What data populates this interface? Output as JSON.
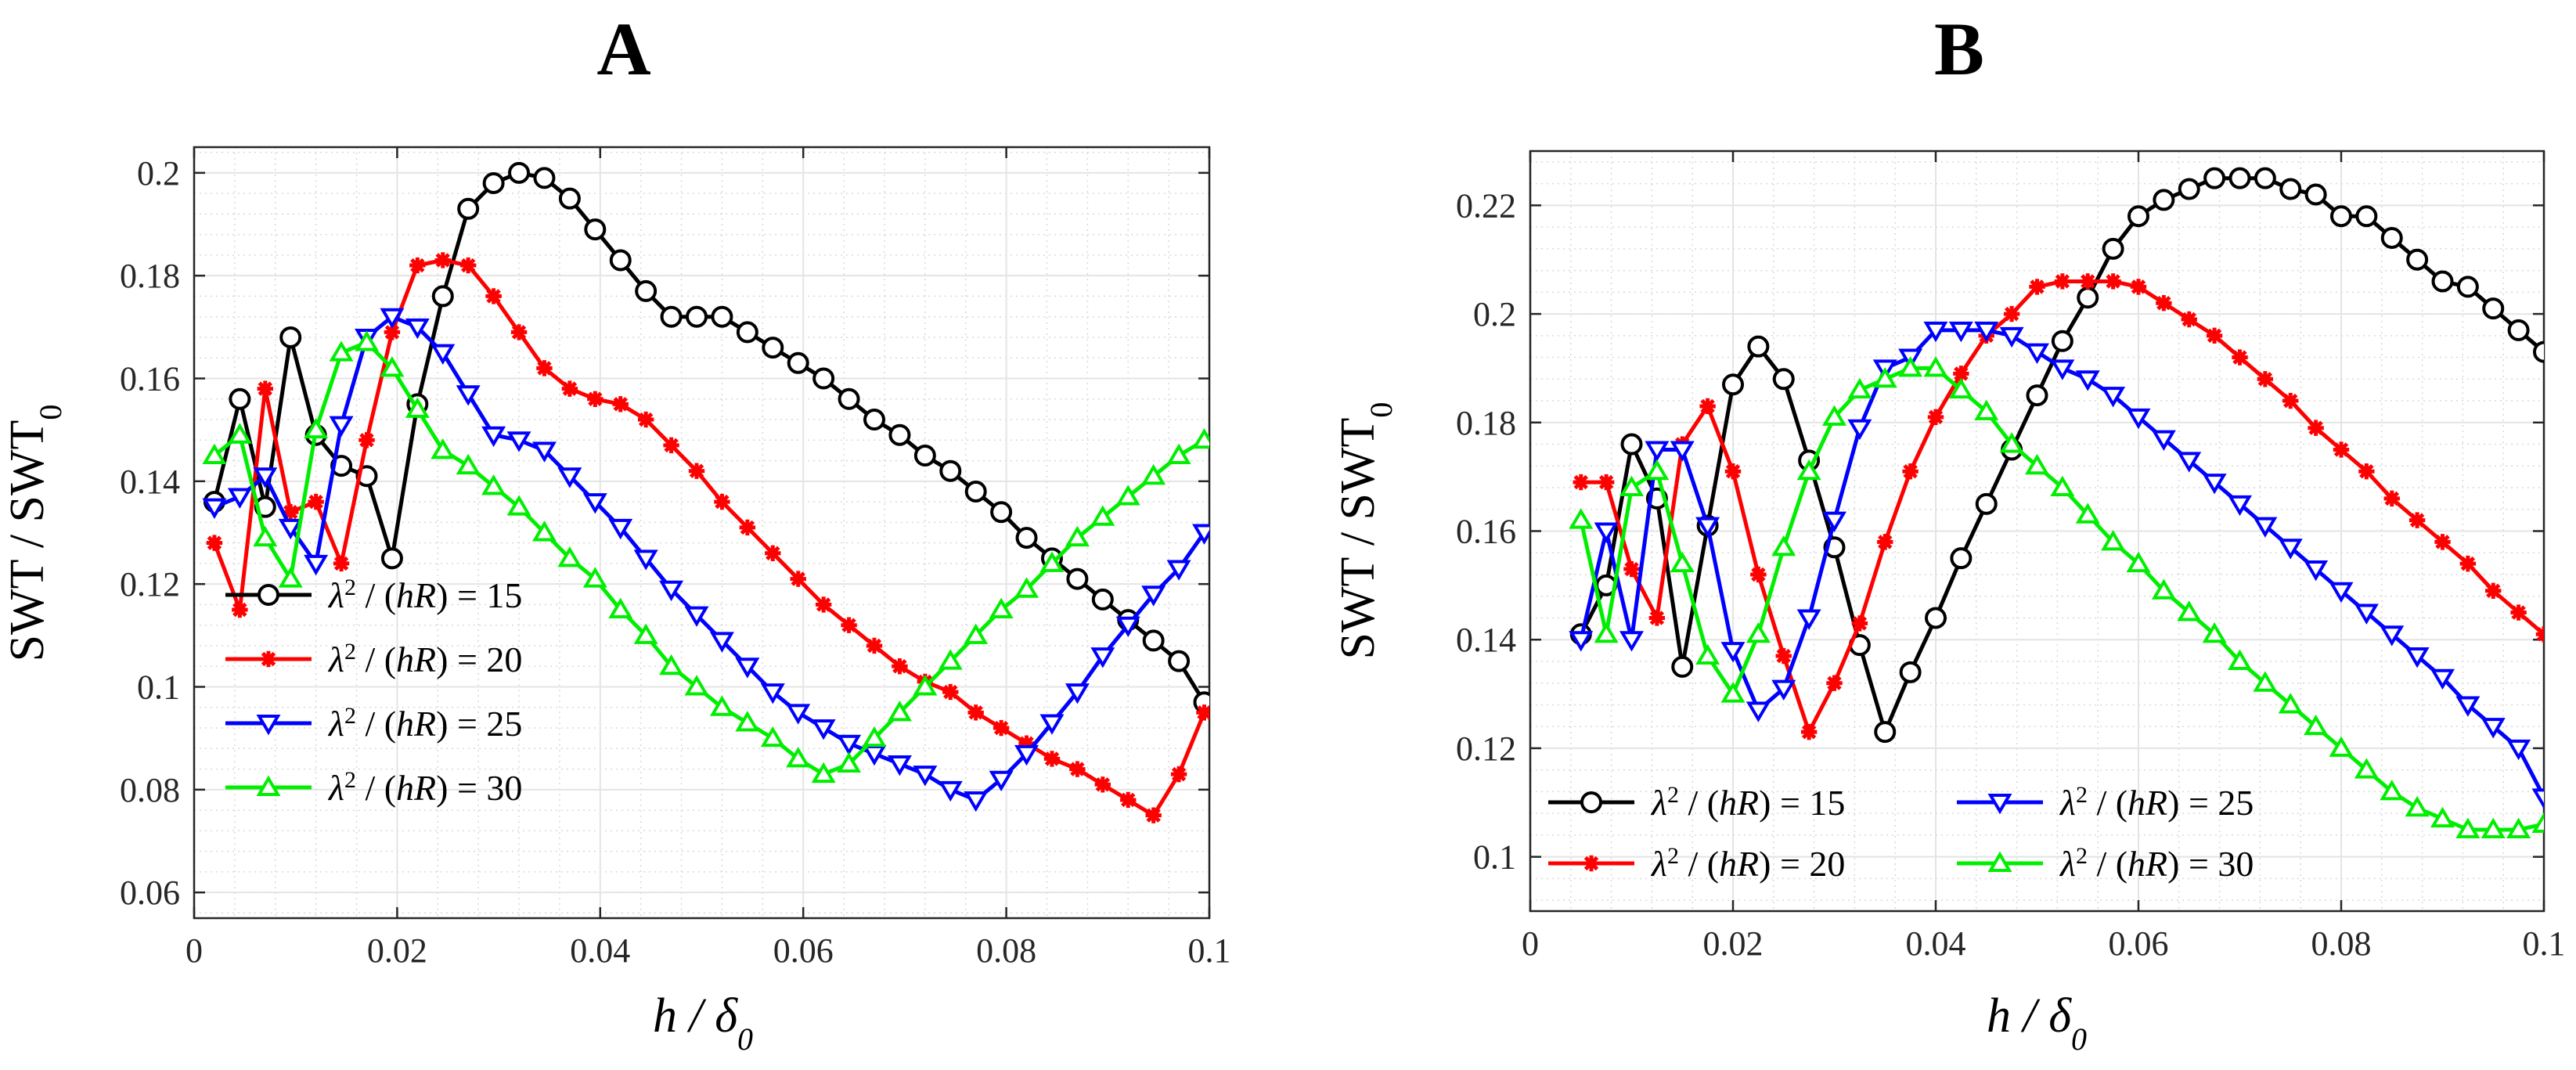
{
  "figure": {
    "panels": [
      "A",
      "B"
    ]
  },
  "chart_data": [
    {
      "panel": "A",
      "type": "line",
      "title": "A",
      "xlabel": "h / δ0",
      "ylabel": "SWT / SWT0",
      "xlim": [
        0,
        0.1
      ],
      "ylim": [
        0.055,
        0.205
      ],
      "xticks": [
        0,
        0.02,
        0.04,
        0.06,
        0.08,
        0.1
      ],
      "xtick_labels": [
        "0",
        "0.02",
        "0.04",
        "0.06",
        "0.08",
        "0.1"
      ],
      "yticks": [
        0.06,
        0.08,
        0.1,
        0.12,
        0.14,
        0.16,
        0.18,
        0.2
      ],
      "ytick_labels": [
        "0.06",
        "0.08",
        "0.1",
        "0.12",
        "0.14",
        "0.16",
        "0.18",
        "0.2"
      ],
      "grid": true,
      "legend_position": "bottom-left",
      "legend_columns": 1,
      "series": [
        {
          "name": "λ2 / (hR) = 15",
          "value": "15",
          "color": "#000000",
          "marker": "circle",
          "x": [
            0.002,
            0.0045,
            0.007,
            0.0095,
            0.012,
            0.0145,
            0.017,
            0.0195,
            0.022,
            0.0245,
            0.027,
            0.0295,
            0.032,
            0.0345,
            0.037,
            0.0395,
            0.042,
            0.0445,
            0.047,
            0.0495,
            0.052,
            0.0545,
            0.057,
            0.0595,
            0.062,
            0.0645,
            0.067,
            0.0695,
            0.072,
            0.0745,
            0.077,
            0.0795,
            0.082,
            0.0845,
            0.087,
            0.0895,
            0.092,
            0.0945,
            0.097,
            0.0995
          ],
          "y": [
            0.136,
            0.156,
            0.135,
            0.168,
            0.149,
            0.143,
            0.141,
            0.125,
            0.155,
            0.176,
            0.193,
            0.198,
            0.2,
            0.199,
            0.195,
            0.189,
            0.183,
            0.177,
            0.172,
            0.172,
            0.172,
            0.169,
            0.166,
            0.163,
            0.16,
            0.156,
            0.152,
            0.149,
            0.145,
            0.142,
            0.138,
            0.134,
            0.129,
            0.125,
            0.121,
            0.117,
            0.113,
            0.109,
            0.105,
            0.097
          ]
        },
        {
          "name": "λ2 / (hR) = 20",
          "value": "20",
          "color": "#ff0000",
          "marker": "asterisk",
          "x": [
            0.002,
            0.0045,
            0.007,
            0.0095,
            0.012,
            0.0145,
            0.017,
            0.0195,
            0.022,
            0.0245,
            0.027,
            0.0295,
            0.032,
            0.0345,
            0.037,
            0.0395,
            0.042,
            0.0445,
            0.047,
            0.0495,
            0.052,
            0.0545,
            0.057,
            0.0595,
            0.062,
            0.0645,
            0.067,
            0.0695,
            0.072,
            0.0745,
            0.077,
            0.0795,
            0.082,
            0.0845,
            0.087,
            0.0895,
            0.092,
            0.0945,
            0.097,
            0.0995
          ],
          "y": [
            0.128,
            0.115,
            0.158,
            0.134,
            0.136,
            0.124,
            0.148,
            0.169,
            0.182,
            0.183,
            0.182,
            0.176,
            0.169,
            0.162,
            0.158,
            0.156,
            0.155,
            0.152,
            0.147,
            0.142,
            0.136,
            0.131,
            0.126,
            0.121,
            0.116,
            0.112,
            0.108,
            0.104,
            0.101,
            0.099,
            0.095,
            0.092,
            0.089,
            0.086,
            0.084,
            0.081,
            0.078,
            0.075,
            0.083,
            0.095
          ]
        },
        {
          "name": "λ2 / (hR) = 25",
          "value": "25",
          "color": "#0000ff",
          "marker": "triangle-down",
          "x": [
            0.002,
            0.0045,
            0.007,
            0.0095,
            0.012,
            0.0145,
            0.017,
            0.0195,
            0.022,
            0.0245,
            0.027,
            0.0295,
            0.032,
            0.0345,
            0.037,
            0.0395,
            0.042,
            0.0445,
            0.047,
            0.0495,
            0.052,
            0.0545,
            0.057,
            0.0595,
            0.062,
            0.0645,
            0.067,
            0.0695,
            0.072,
            0.0745,
            0.077,
            0.0795,
            0.082,
            0.0845,
            0.087,
            0.0895,
            0.092,
            0.0945,
            0.097,
            0.0995
          ],
          "y": [
            0.135,
            0.137,
            0.141,
            0.131,
            0.124,
            0.151,
            0.168,
            0.172,
            0.17,
            0.165,
            0.157,
            0.149,
            0.148,
            0.146,
            0.141,
            0.136,
            0.131,
            0.125,
            0.119,
            0.114,
            0.109,
            0.104,
            0.099,
            0.095,
            0.092,
            0.089,
            0.087,
            0.085,
            0.083,
            0.08,
            0.078,
            0.082,
            0.087,
            0.093,
            0.099,
            0.106,
            0.112,
            0.118,
            0.123,
            0.13
          ]
        },
        {
          "name": "λ2 / (hR) = 30",
          "value": "30",
          "color": "#00ee00",
          "marker": "triangle-up",
          "x": [
            0.002,
            0.0045,
            0.007,
            0.0095,
            0.012,
            0.0145,
            0.017,
            0.0195,
            0.022,
            0.0245,
            0.027,
            0.0295,
            0.032,
            0.0345,
            0.037,
            0.0395,
            0.042,
            0.0445,
            0.047,
            0.0495,
            0.052,
            0.0545,
            0.057,
            0.0595,
            0.062,
            0.0645,
            0.067,
            0.0695,
            0.072,
            0.0745,
            0.077,
            0.0795,
            0.082,
            0.0845,
            0.087,
            0.0895,
            0.092,
            0.0945,
            0.097,
            0.0995
          ],
          "y": [
            0.145,
            0.149,
            0.129,
            0.121,
            0.15,
            0.165,
            0.167,
            0.162,
            0.154,
            0.146,
            0.143,
            0.139,
            0.135,
            0.13,
            0.125,
            0.121,
            0.115,
            0.11,
            0.104,
            0.1,
            0.096,
            0.093,
            0.09,
            0.086,
            0.083,
            0.085,
            0.09,
            0.095,
            0.1,
            0.105,
            0.11,
            0.115,
            0.119,
            0.124,
            0.129,
            0.133,
            0.137,
            0.141,
            0.145,
            0.148
          ]
        }
      ]
    },
    {
      "panel": "B",
      "type": "line",
      "title": "B",
      "xlabel": "h / δ0",
      "ylabel": "SWT / SWT0",
      "xlim": [
        0,
        0.1
      ],
      "ylim": [
        0.09,
        0.23
      ],
      "xticks": [
        0,
        0.02,
        0.04,
        0.06,
        0.08,
        0.1
      ],
      "xtick_labels": [
        "0",
        "0.02",
        "0.04",
        "0.06",
        "0.08",
        "0.1"
      ],
      "yticks": [
        0.1,
        0.12,
        0.14,
        0.16,
        0.18,
        0.2,
        0.22
      ],
      "ytick_labels": [
        "0.1",
        "0.12",
        "0.14",
        "0.16",
        "0.18",
        "0.2",
        "0.22"
      ],
      "grid": true,
      "legend_position": "bottom",
      "legend_columns": 2,
      "series": [
        {
          "name": "λ2 / (hR) = 15",
          "value": "15",
          "color": "#000000",
          "marker": "circle",
          "x": [
            0.005,
            0.0075,
            0.01,
            0.0125,
            0.015,
            0.0175,
            0.02,
            0.0225,
            0.025,
            0.0275,
            0.03,
            0.0325,
            0.035,
            0.0375,
            0.04,
            0.0425,
            0.045,
            0.0475,
            0.05,
            0.0525,
            0.055,
            0.0575,
            0.06,
            0.0625,
            0.065,
            0.0675,
            0.07,
            0.0725,
            0.075,
            0.0775,
            0.08,
            0.0825,
            0.085,
            0.0875,
            0.09,
            0.0925,
            0.095,
            0.0975,
            0.1
          ],
          "y": [
            0.141,
            0.15,
            0.176,
            0.166,
            0.135,
            0.161,
            0.187,
            0.194,
            0.188,
            0.173,
            0.157,
            0.139,
            0.123,
            0.134,
            0.144,
            0.155,
            0.165,
            0.175,
            0.185,
            0.195,
            0.203,
            0.212,
            0.218,
            0.221,
            0.223,
            0.225,
            0.225,
            0.225,
            0.223,
            0.222,
            0.218,
            0.218,
            0.214,
            0.21,
            0.206,
            0.205,
            0.201,
            0.197,
            0.193
          ]
        },
        {
          "name": "λ2 / (hR) = 20",
          "value": "20",
          "color": "#ff0000",
          "marker": "asterisk",
          "x": [
            0.005,
            0.0075,
            0.01,
            0.0125,
            0.015,
            0.0175,
            0.02,
            0.0225,
            0.025,
            0.0275,
            0.03,
            0.0325,
            0.035,
            0.0375,
            0.04,
            0.0425,
            0.045,
            0.0475,
            0.05,
            0.0525,
            0.055,
            0.0575,
            0.06,
            0.0625,
            0.065,
            0.0675,
            0.07,
            0.0725,
            0.075,
            0.0775,
            0.08,
            0.0825,
            0.085,
            0.0875,
            0.09,
            0.0925,
            0.095,
            0.0975,
            0.1
          ],
          "y": [
            0.169,
            0.169,
            0.153,
            0.144,
            0.176,
            0.183,
            0.171,
            0.152,
            0.137,
            0.123,
            0.132,
            0.143,
            0.158,
            0.171,
            0.181,
            0.189,
            0.196,
            0.2,
            0.205,
            0.206,
            0.206,
            0.206,
            0.205,
            0.202,
            0.199,
            0.196,
            0.192,
            0.188,
            0.184,
            0.179,
            0.175,
            0.171,
            0.166,
            0.162,
            0.158,
            0.154,
            0.149,
            0.145,
            0.141
          ]
        },
        {
          "name": "λ2 / (hR) = 25",
          "value": "25",
          "color": "#0000ff",
          "marker": "triangle-down",
          "x": [
            0.005,
            0.0075,
            0.01,
            0.0125,
            0.015,
            0.0175,
            0.02,
            0.0225,
            0.025,
            0.0275,
            0.03,
            0.0325,
            0.035,
            0.0375,
            0.04,
            0.0425,
            0.045,
            0.0475,
            0.05,
            0.0525,
            0.055,
            0.0575,
            0.06,
            0.0625,
            0.065,
            0.0675,
            0.07,
            0.0725,
            0.075,
            0.0775,
            0.08,
            0.0825,
            0.085,
            0.0875,
            0.09,
            0.0925,
            0.095,
            0.0975,
            0.1
          ],
          "y": [
            0.14,
            0.16,
            0.14,
            0.175,
            0.175,
            0.161,
            0.138,
            0.127,
            0.131,
            0.144,
            0.162,
            0.179,
            0.19,
            0.192,
            0.197,
            0.197,
            0.197,
            0.196,
            0.193,
            0.19,
            0.188,
            0.185,
            0.181,
            0.177,
            0.173,
            0.169,
            0.165,
            0.161,
            0.157,
            0.153,
            0.149,
            0.145,
            0.141,
            0.137,
            0.133,
            0.128,
            0.124,
            0.12,
            0.111
          ]
        },
        {
          "name": "λ2 / (hR) = 30",
          "value": "30",
          "color": "#00ee00",
          "marker": "triangle-up",
          "x": [
            0.005,
            0.0075,
            0.01,
            0.0125,
            0.015,
            0.0175,
            0.02,
            0.0225,
            0.025,
            0.0275,
            0.03,
            0.0325,
            0.035,
            0.0375,
            0.04,
            0.0425,
            0.045,
            0.0475,
            0.05,
            0.0525,
            0.055,
            0.0575,
            0.06,
            0.0625,
            0.065,
            0.0675,
            0.07,
            0.0725,
            0.075,
            0.0775,
            0.08,
            0.0825,
            0.085,
            0.0875,
            0.09,
            0.0925,
            0.095,
            0.0975,
            0.1
          ],
          "y": [
            0.162,
            0.141,
            0.168,
            0.171,
            0.154,
            0.137,
            0.13,
            0.141,
            0.157,
            0.171,
            0.181,
            0.186,
            0.188,
            0.19,
            0.19,
            0.186,
            0.182,
            0.176,
            0.172,
            0.168,
            0.163,
            0.158,
            0.154,
            0.149,
            0.145,
            0.141,
            0.136,
            0.132,
            0.128,
            0.124,
            0.12,
            0.116,
            0.112,
            0.109,
            0.107,
            0.105,
            0.105,
            0.105,
            0.106
          ]
        }
      ]
    }
  ]
}
